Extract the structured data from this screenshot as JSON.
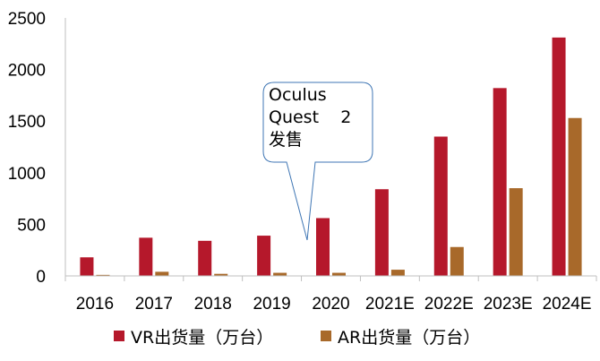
{
  "chart_data": {
    "type": "bar",
    "categories": [
      "2016",
      "2017",
      "2018",
      "2019",
      "2020",
      "2021E",
      "2022E",
      "2023E",
      "2024E"
    ],
    "series": [
      {
        "name": "VR出货量（万台）",
        "color": "#B5182B",
        "values": [
          180,
          370,
          340,
          390,
          560,
          840,
          1350,
          1820,
          2310
        ]
      },
      {
        "name": "AR出货量（万台）",
        "color": "#A8692A",
        "values": [
          10,
          40,
          20,
          30,
          30,
          60,
          280,
          850,
          1530
        ]
      }
    ],
    "ylim": [
      0,
      2500
    ],
    "yticks": [
      0,
      500,
      1000,
      1500,
      2000,
      2500
    ],
    "grid": false,
    "legend_position": "bottom",
    "annotation": {
      "lines": [
        "Oculus",
        "Quest    2",
        "发售"
      ],
      "target_category": "2020"
    }
  }
}
